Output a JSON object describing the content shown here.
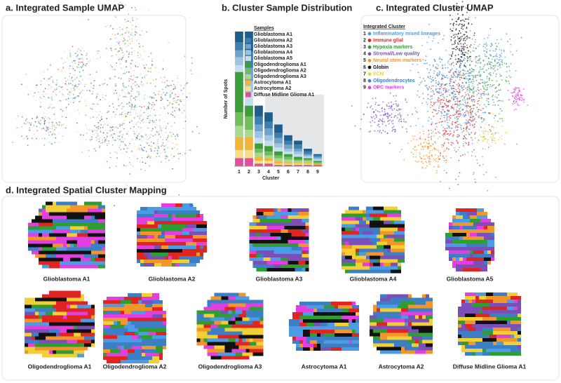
{
  "panels": {
    "a": {
      "title": "a. Integrated Sample UMAP"
    },
    "c": {
      "title": "c. Integrated Cluster UMAP",
      "legend_title": "Integrated Cluster",
      "clusters": [
        {
          "number": 1,
          "name": "Inflammatory mixed lineages",
          "color": "#4c9be6"
        },
        {
          "number": 2,
          "name": "Immune glial",
          "color": "#e0241f"
        },
        {
          "number": 3,
          "name": "Hypoxia markers",
          "color": "#2e9e34"
        },
        {
          "number": 4,
          "name": "Stromal/Low quality",
          "color": "#7a4fb8"
        },
        {
          "number": 5,
          "name": "Neural stem markers",
          "color": "#f3962a"
        },
        {
          "number": 6,
          "name": "Globin",
          "color": "#111111"
        },
        {
          "number": 7,
          "name": "ECM",
          "color": "#f2cf35"
        },
        {
          "number": 8,
          "name": "Oligodendrocytes",
          "color": "#3d7fc4"
        },
        {
          "number": 9,
          "name": "OPC markers",
          "color": "#e23ee0"
        }
      ]
    },
    "d": {
      "title": "d. Integrated Spatial Cluster Mapping",
      "samples": [
        "Glioblastoma A1",
        "Glioblastoma A2",
        "Glioblastoma A3",
        "Glioblastoma A4",
        "Glioblastoma A5",
        "Oligodendroglioma A1",
        "Oligodendroglioma A2",
        "Oligodendroglioma A3",
        "Astrocytoma A1",
        "Astrocytoma A2",
        "Diffuse Midline Glioma A1"
      ]
    }
  },
  "chart_data": {
    "type": "bar",
    "stacked": true,
    "title": "b. Cluster Sample Distribution",
    "x_label": "Cluster",
    "y_label": "Number of Spots",
    "legend_title": "Samples",
    "categories": [
      "1",
      "2",
      "3",
      "4",
      "5",
      "6",
      "7",
      "8",
      "9"
    ],
    "ylim": [
      0,
      100
    ],
    "series": [
      {
        "name": "Glioblastoma A1",
        "color": "#1f5d8c",
        "values": [
          8,
          15,
          8,
          7,
          6,
          4,
          3,
          2,
          1
        ]
      },
      {
        "name": "Glioblastoma A2",
        "color": "#3f7fb0",
        "values": [
          6,
          12,
          6,
          5,
          4,
          3,
          3,
          2,
          1
        ]
      },
      {
        "name": "Glioblastoma A3",
        "color": "#6ea3cc",
        "values": [
          5,
          10,
          5,
          5,
          4,
          3,
          2,
          1,
          1
        ]
      },
      {
        "name": "Glioblastoma A4",
        "color": "#9cc3e0",
        "values": [
          6,
          8,
          5,
          4,
          3,
          2,
          2,
          1,
          1
        ]
      },
      {
        "name": "Glioblastoma A5",
        "color": "#c6ddef",
        "values": [
          5,
          10,
          4,
          4,
          3,
          2,
          2,
          1,
          1
        ]
      },
      {
        "name": "Oligodendroglioma A1",
        "color": "#3c9e3c",
        "values": [
          30,
          8,
          4,
          4,
          3,
          2,
          2,
          1,
          1
        ]
      },
      {
        "name": "Oligodendroglioma A2",
        "color": "#72bd5e",
        "values": [
          10,
          10,
          3,
          3,
          2,
          2,
          1,
          1,
          1
        ]
      },
      {
        "name": "Oligodendroglioma A3",
        "color": "#a9d88f",
        "values": [
          8,
          5,
          3,
          2,
          2,
          2,
          1,
          1,
          0
        ]
      },
      {
        "name": "Astrocytoma A1",
        "color": "#f0b63c",
        "values": [
          10,
          10,
          3,
          2,
          2,
          1,
          1,
          1,
          1
        ]
      },
      {
        "name": "Astrocytoma A2",
        "color": "#f7dc8a",
        "values": [
          6,
          6,
          2,
          2,
          1,
          1,
          1,
          1,
          0
        ]
      },
      {
        "name": "Diffuse Midline Glioma A1",
        "color": "#e04f9a",
        "values": [
          6,
          6,
          2,
          2,
          1,
          1,
          1,
          1,
          1
        ]
      }
    ]
  }
}
